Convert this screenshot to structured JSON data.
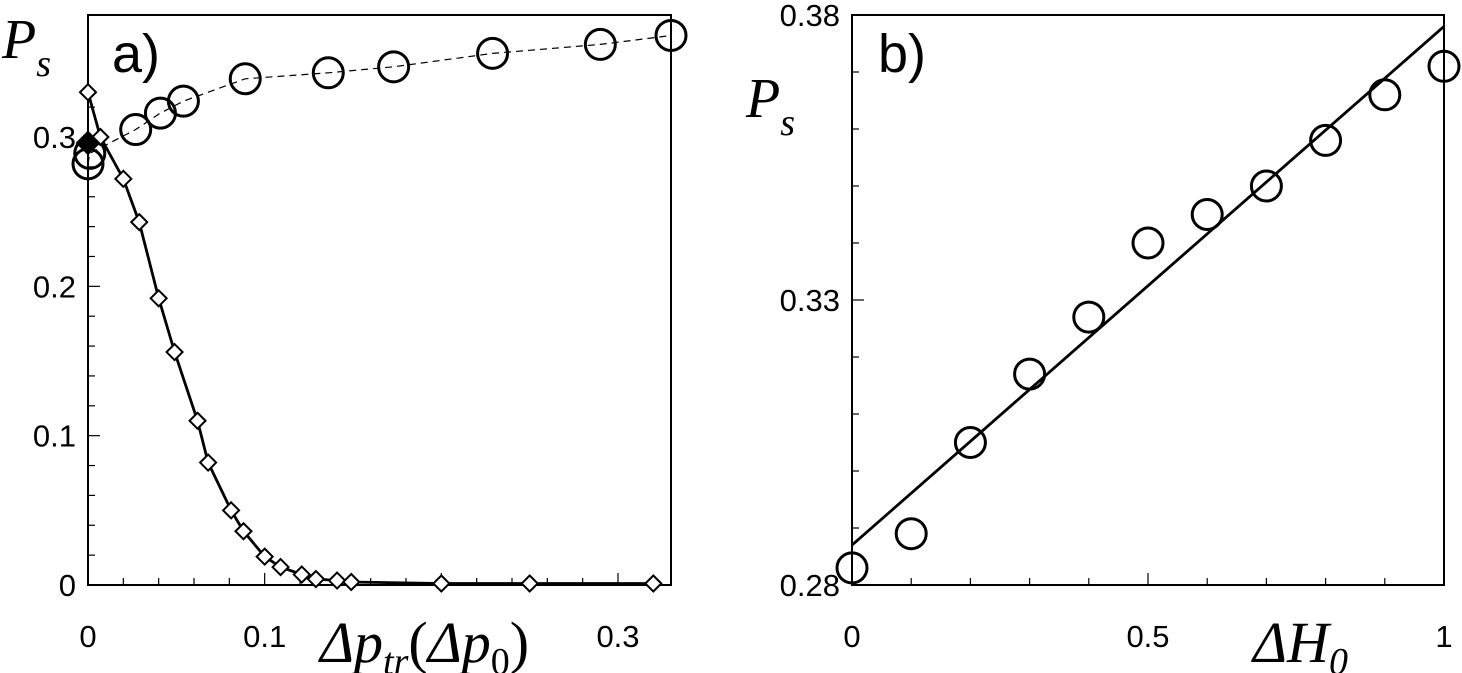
{
  "chart_data": [
    {
      "type": "scatter",
      "panel_label": "a)",
      "ylabel": {
        "main": "P",
        "sub": "s"
      },
      "xlabel": {
        "main1": "Δp",
        "sub1": "tr",
        "open": "(",
        "main2": "Δp",
        "sub2": "0",
        "close": ")"
      },
      "xlim": [
        0,
        0.33
      ],
      "ylim": [
        0,
        0.33
      ],
      "xticks": [
        {
          "value": 0,
          "label": "0"
        },
        {
          "value": 0.1,
          "label": "0.1"
        },
        {
          "value": 0.3,
          "label": "0.3"
        }
      ],
      "yticks": [
        {
          "value": 0,
          "label": "0"
        },
        {
          "value": 0.1,
          "label": "0.1"
        },
        {
          "value": 0.2,
          "label": "0.2"
        },
        {
          "value": 0.3,
          "label": "0.3"
        }
      ],
      "grid": false,
      "series": [
        {
          "marker": "circle",
          "line": "dashed",
          "x": [
            0.0,
            0.001,
            0.027,
            0.041,
            0.054,
            0.089,
            0.136,
            0.173,
            0.229,
            0.29,
            0.33
          ],
          "y": [
            0.282,
            0.289,
            0.305,
            0.316,
            0.324,
            0.339,
            0.343,
            0.347,
            0.356,
            0.362,
            0.368
          ]
        },
        {
          "marker": "diamond",
          "line": "solid",
          "x": [
            0.0,
            0.007,
            0.02,
            0.029,
            0.04,
            0.049,
            0.062,
            0.068,
            0.081,
            0.088,
            0.1,
            0.109,
            0.121,
            0.129,
            0.141,
            0.149,
            0.2,
            0.25,
            0.32
          ],
          "y": [
            0.33,
            0.3,
            0.272,
            0.243,
            0.192,
            0.156,
            0.11,
            0.082,
            0.05,
            0.036,
            0.019,
            0.012,
            0.007,
            0.004,
            0.003,
            0.002,
            0.001,
            0.001,
            0.001
          ]
        },
        {
          "marker": "filled-diamond",
          "line": "none",
          "x": [
            0.0
          ],
          "y": [
            0.296
          ]
        }
      ]
    },
    {
      "type": "scatter",
      "panel_label": "b)",
      "ylabel": {
        "main": "P",
        "sub": "s"
      },
      "xlabel": {
        "main": "ΔH",
        "sub": "0"
      },
      "xlim": [
        0,
        1
      ],
      "ylim": [
        0.28,
        0.38
      ],
      "xticks": [
        {
          "value": 0,
          "label": "0"
        },
        {
          "value": 0.5,
          "label": "0.5"
        },
        {
          "value": 1,
          "label": "1"
        }
      ],
      "yticks": [
        {
          "value": 0.28,
          "label": "0.28"
        },
        {
          "value": 0.33,
          "label": "0.33"
        },
        {
          "value": 0.38,
          "label": "0.38"
        }
      ],
      "grid": false,
      "series": [
        {
          "marker": "circle",
          "line": "none",
          "x": [
            0,
            0.1,
            0.2,
            0.3,
            0.4,
            0.5,
            0.6,
            0.7,
            0.8,
            0.9,
            1.0
          ],
          "y": [
            0.283,
            0.289,
            0.305,
            0.317,
            0.327,
            0.34,
            0.345,
            0.35,
            0.358,
            0.366,
            0.371
          ]
        },
        {
          "marker": "none",
          "line": "solid",
          "x": [
            0,
            1
          ],
          "y": [
            0.287,
            0.378
          ]
        }
      ]
    }
  ]
}
